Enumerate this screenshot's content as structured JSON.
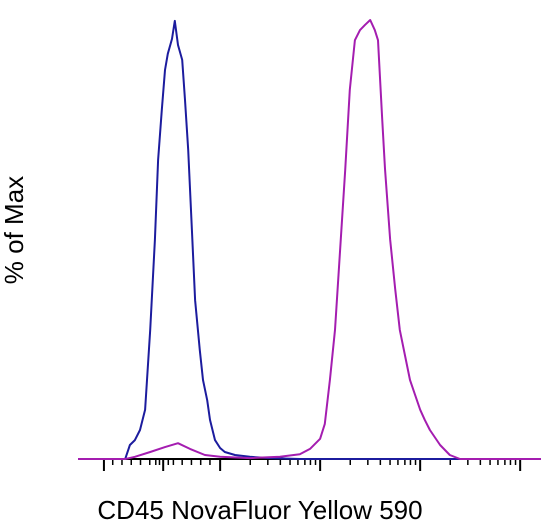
{
  "chart_data": {
    "type": "line",
    "xlabel": "CD45 NovaFluor Yellow 590",
    "ylabel": "% of Max",
    "xlim": [
      0,
      100
    ],
    "ylim": [
      0,
      100
    ],
    "xticks": [
      5.6,
      18.4,
      30.7,
      52.3,
      73.9,
      95.5
    ],
    "xminor_ticks": [
      7.5,
      9.5,
      11.5,
      13.5,
      15.5,
      16.8,
      17.6,
      19.5,
      20.6,
      22.5,
      24.5,
      26.5,
      28.5,
      37.2,
      41.0,
      43.7,
      45.8,
      47.5,
      49.0,
      50.2,
      51.3,
      58.8,
      62.6,
      65.3,
      67.4,
      69.1,
      70.6,
      71.8,
      72.9,
      80.4,
      84.2,
      86.9,
      89.0,
      90.7,
      92.2,
      93.4,
      94.5
    ],
    "series": [
      {
        "color": "#1c1c9e",
        "x": [
          0,
          10.2,
          11.2,
          12.3,
          13.4,
          14.5,
          15.6,
          16.6,
          17.3,
          18.1,
          18.8,
          19.4,
          20.3,
          20.9,
          21.6,
          22.5,
          23.1,
          23.8,
          24.6,
          25.3,
          26.3,
          27.0,
          27.9,
          28.5,
          29.6,
          30.7,
          31.7,
          33.9,
          37.1,
          41.5,
          47.9,
          100
        ],
        "values": [
          0,
          0,
          3.2,
          4.3,
          6.6,
          11.2,
          29.4,
          49.9,
          68.1,
          79.5,
          88.6,
          92.3,
          95.7,
          99.8,
          94.3,
          90.9,
          81.8,
          70.4,
          52.2,
          36.2,
          24.8,
          18.0,
          13.4,
          8.9,
          4.3,
          2.5,
          1.6,
          0.9,
          0.5,
          0.2,
          0,
          0
        ]
      },
      {
        "color": "#a41db0",
        "x": [
          0,
          10.2,
          12.3,
          15.6,
          18.8,
          21.6,
          24.2,
          27.4,
          30.7,
          37.1,
          43.6,
          47.9,
          50.1,
          52.3,
          53.3,
          54.4,
          55.5,
          56.6,
          57.7,
          58.7,
          59.8,
          60.9,
          62.0,
          63.1,
          64.1,
          64.8,
          65.7,
          66.3,
          67.4,
          68.5,
          69.5,
          70.6,
          71.7,
          72.8,
          73.9,
          74.9,
          76.0,
          78.2,
          80.3,
          82.5,
          100
        ],
        "values": [
          0,
          0,
          0.5,
          1.6,
          2.7,
          3.6,
          2.3,
          0.9,
          0.5,
          0.2,
          0.5,
          1.1,
          2.3,
          4.6,
          8.0,
          18.0,
          29.4,
          47.6,
          65.8,
          84.1,
          95.4,
          97.7,
          98.9,
          100,
          97.7,
          95.4,
          77.4,
          66.1,
          50.1,
          38.7,
          29.4,
          23.7,
          18.0,
          14.6,
          11.2,
          8.9,
          6.6,
          3.2,
          0.9,
          0,
          0
        ]
      }
    ]
  }
}
